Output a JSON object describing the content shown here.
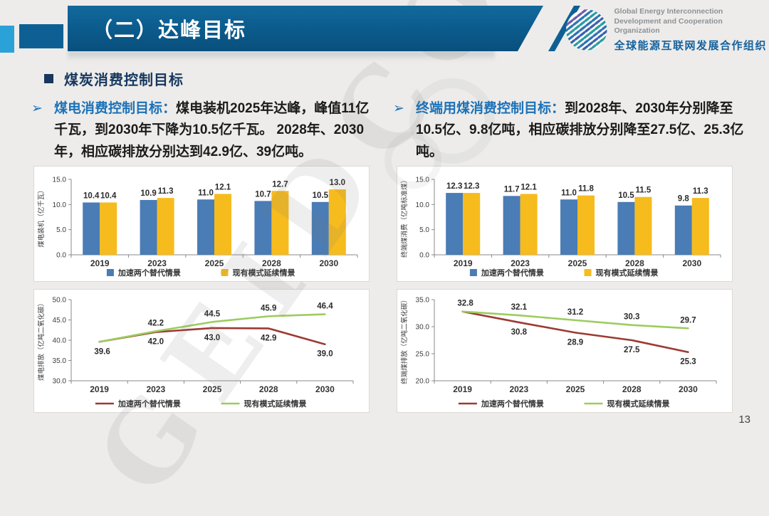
{
  "slide": {
    "title": "（二）达峰目标",
    "page_number": "13",
    "watermark": "GEIDCO",
    "section_title": "煤炭消费控制目标",
    "bullet_arrow": "➢",
    "logo": {
      "en_line1": "Global Energy Interconnection",
      "en_line2": "Development and Cooperation Organization",
      "zh": "全球能源互联网发展合作组织"
    },
    "bullets": [
      {
        "lead": "煤电消费控制目标：",
        "body": "煤电装机2025年达峰，峰值11亿千瓦，到2030年下降为10.5亿千瓦。 2028年、2030年，相应碳排放分别达到42.9亿、39亿吨。"
      },
      {
        "lead": "终端用煤消费控制目标：",
        "body": "到2028年、2030年分别降至10.5亿、9.8亿吨，相应碳排放分别降至27.5亿、25.3亿吨。"
      }
    ]
  },
  "colors": {
    "banner_blue": "#0e6094",
    "accent_blue": "#1d72b8",
    "title_navy": "#17375e",
    "bar_blue": "#4a7cb5",
    "bar_yellow": "#f6bb1d",
    "line_red": "#9c3a33",
    "line_green": "#9dcc5f"
  },
  "chart_data": [
    {
      "id": "coal-power-capacity",
      "type": "bar",
      "title": "",
      "ylabel": "煤电装机（亿千瓦）",
      "xlabel": "",
      "categories": [
        "2019",
        "2023",
        "2025",
        "2028",
        "2030"
      ],
      "series": [
        {
          "name": "加速两个替代情景",
          "color": "#4a7cb5",
          "values": [
            10.4,
            10.9,
            11.0,
            10.7,
            10.5
          ]
        },
        {
          "name": "现有模式延续情景",
          "color": "#f6bb1d",
          "values": [
            10.4,
            11.3,
            12.1,
            12.7,
            13.0
          ]
        }
      ],
      "ylim": [
        0,
        15
      ],
      "yticks": [
        0,
        5,
        10,
        15
      ],
      "grid": false,
      "legend_position": "bottom"
    },
    {
      "id": "terminal-coal-consumption",
      "type": "bar",
      "title": "",
      "ylabel": "终端煤消费（亿吨标准煤）",
      "xlabel": "",
      "categories": [
        "2019",
        "2023",
        "2025",
        "2028",
        "2030"
      ],
      "series": [
        {
          "name": "加速两个替代情景",
          "color": "#4a7cb5",
          "values": [
            12.3,
            11.7,
            11.0,
            10.5,
            9.8
          ]
        },
        {
          "name": "现有模式延续情景",
          "color": "#f6bb1d",
          "values": [
            12.3,
            12.1,
            11.8,
            11.5,
            11.3
          ]
        }
      ],
      "ylim": [
        0,
        15
      ],
      "yticks": [
        0,
        5,
        10,
        15
      ],
      "grid": false,
      "legend_position": "bottom"
    },
    {
      "id": "coal-power-emissions",
      "type": "line",
      "title": "",
      "ylabel": "煤电排放（亿吨二氧化碳）",
      "xlabel": "",
      "categories": [
        "2019",
        "2023",
        "2025",
        "2028",
        "2030"
      ],
      "series": [
        {
          "name": "加速两个替代情景",
          "color": "#9c3a33",
          "values": [
            39.6,
            42.0,
            43.0,
            42.9,
            39.0
          ],
          "label_pos": "below"
        },
        {
          "name": "现有模式延续情景",
          "color": "#9dcc5f",
          "values": [
            39.6,
            42.2,
            44.5,
            45.9,
            46.4
          ],
          "label_pos": "above"
        }
      ],
      "ylim": [
        30,
        50
      ],
      "yticks": [
        30,
        35,
        40,
        45,
        50
      ],
      "shared_first_label_pos": "below",
      "grid": false,
      "legend_position": "bottom"
    },
    {
      "id": "terminal-coal-emissions",
      "type": "line",
      "title": "",
      "ylabel": "终端煤排放（亿吨二氧化碳）",
      "xlabel": "",
      "categories": [
        "2019",
        "2023",
        "2025",
        "2028",
        "2030"
      ],
      "series": [
        {
          "name": "加速两个替代情景",
          "color": "#9c3a33",
          "values": [
            32.8,
            30.8,
            28.9,
            27.5,
            25.3
          ],
          "label_pos": "below"
        },
        {
          "name": "现有模式延续情景",
          "color": "#9dcc5f",
          "values": [
            32.8,
            32.1,
            31.2,
            30.3,
            29.7
          ],
          "label_pos": "above"
        }
      ],
      "ylim": [
        20,
        35
      ],
      "yticks": [
        20,
        25,
        30,
        35
      ],
      "shared_first_label_pos": "above",
      "grid": false,
      "legend_position": "bottom"
    }
  ]
}
